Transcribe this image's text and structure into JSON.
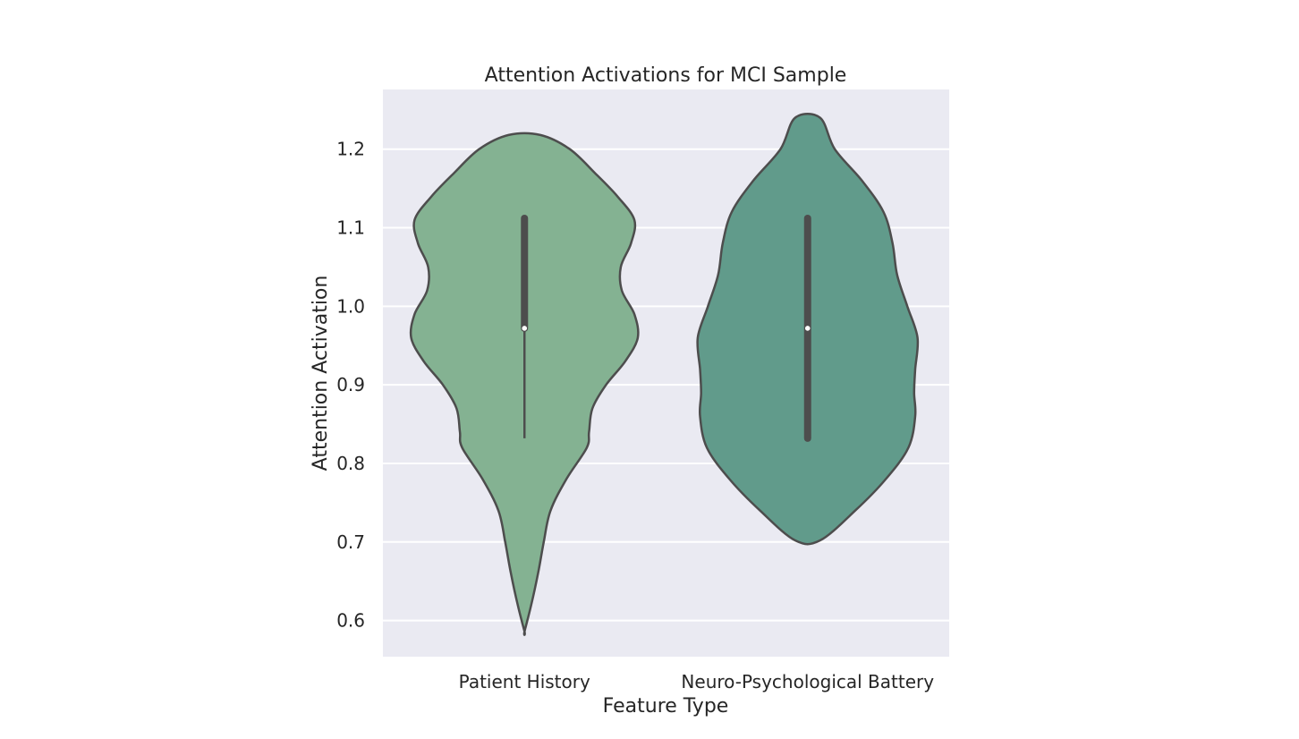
{
  "chart_data": {
    "type": "violin",
    "title": "Attention Activations for MCI Sample",
    "xlabel": "Feature Type",
    "ylabel": "Attention Activation",
    "ylim": [
      0.554,
      1.276
    ],
    "yticks": [
      0.6,
      0.7,
      0.8,
      0.9,
      1.0,
      1.1,
      1.2
    ],
    "ytick_labels": [
      "0.6",
      "0.7",
      "0.8",
      "0.9",
      "1.0",
      "1.1",
      "1.2"
    ],
    "categories": [
      "Patient History",
      "Neuro-Psychological Battery"
    ],
    "grid": true,
    "background": "#eaeaf2",
    "violins": [
      {
        "category": "Patient History",
        "color": "#84b292",
        "min": 0.586,
        "max": 1.218,
        "median": 0.972,
        "q1": 0.972,
        "q3": 1.112,
        "whisker_low": 0.832,
        "whisker_high": 1.112,
        "density_profile": [
          [
            0.586,
            0.0
          ],
          [
            0.62,
            0.06
          ],
          [
            0.66,
            0.12
          ],
          [
            0.7,
            0.17
          ],
          [
            0.74,
            0.23
          ],
          [
            0.78,
            0.37
          ],
          [
            0.82,
            0.55
          ],
          [
            0.84,
            0.57
          ],
          [
            0.87,
            0.6
          ],
          [
            0.9,
            0.72
          ],
          [
            0.93,
            0.89
          ],
          [
            0.96,
            1.0
          ],
          [
            0.99,
            0.97
          ],
          [
            1.02,
            0.86
          ],
          [
            1.05,
            0.85
          ],
          [
            1.08,
            0.94
          ],
          [
            1.11,
            0.97
          ],
          [
            1.14,
            0.82
          ],
          [
            1.17,
            0.62
          ],
          [
            1.2,
            0.4
          ],
          [
            1.218,
            0.14
          ]
        ]
      },
      {
        "category": "Neuro-Psychological Battery",
        "color": "#619b8b",
        "min": 0.702,
        "max": 1.24,
        "median": 0.972,
        "q1": 0.832,
        "q3": 1.112,
        "whisker_low": 0.832,
        "whisker_high": 1.112,
        "density_profile": [
          [
            0.702,
            0.11
          ],
          [
            0.74,
            0.42
          ],
          [
            0.78,
            0.69
          ],
          [
            0.82,
            0.89
          ],
          [
            0.86,
            0.95
          ],
          [
            0.89,
            0.94
          ],
          [
            0.92,
            0.95
          ],
          [
            0.96,
            0.97
          ],
          [
            1.0,
            0.88
          ],
          [
            1.04,
            0.79
          ],
          [
            1.08,
            0.75
          ],
          [
            1.12,
            0.67
          ],
          [
            1.16,
            0.48
          ],
          [
            1.2,
            0.24
          ],
          [
            1.24,
            0.11
          ]
        ]
      }
    ]
  }
}
